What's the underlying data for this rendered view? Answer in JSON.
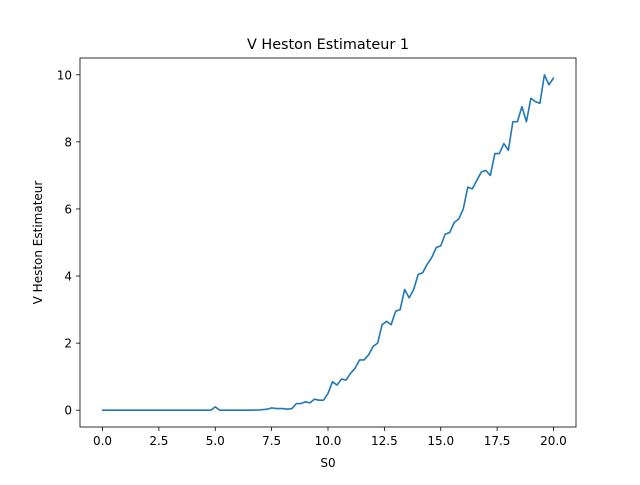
{
  "chart_data": {
    "type": "line",
    "title": "V Heston Estimateur 1",
    "xlabel": "S0",
    "ylabel": "V Heston Estimateur",
    "xlim": [
      -1.0,
      21.0
    ],
    "ylim": [
      -0.5,
      10.5
    ],
    "grid": false,
    "line_color": "#1f77b4",
    "x_ticks": [
      0.0,
      2.5,
      5.0,
      7.5,
      10.0,
      12.5,
      15.0,
      17.5,
      20.0
    ],
    "x_tick_labels": [
      "0.0",
      "2.5",
      "5.0",
      "7.5",
      "10.0",
      "12.5",
      "15.0",
      "17.5",
      "20.0"
    ],
    "y_ticks": [
      0,
      2,
      4,
      6,
      8,
      10
    ],
    "y_tick_labels": [
      "0",
      "2",
      "4",
      "6",
      "8",
      "10"
    ],
    "series": [
      {
        "x": [
          0.0,
          0.5,
          1.0,
          1.5,
          2.0,
          2.5,
          3.0,
          3.5,
          4.0,
          4.5,
          4.8,
          5.0,
          5.2,
          5.5,
          6.0,
          6.5,
          7.0,
          7.3,
          7.5,
          7.7,
          8.0,
          8.2,
          8.4,
          8.6,
          8.8,
          9.0,
          9.2,
          9.4,
          9.6,
          9.8,
          10.0,
          10.2,
          10.4,
          10.6,
          10.8,
          11.0,
          11.2,
          11.4,
          11.6,
          11.8,
          12.0,
          12.2,
          12.4,
          12.6,
          12.8,
          13.0,
          13.2,
          13.4,
          13.6,
          13.8,
          14.0,
          14.2,
          14.4,
          14.6,
          14.8,
          15.0,
          15.2,
          15.4,
          15.6,
          15.8,
          16.0,
          16.2,
          16.4,
          16.6,
          16.8,
          17.0,
          17.2,
          17.4,
          17.6,
          17.8,
          18.0,
          18.2,
          18.4,
          18.6,
          18.8,
          19.0,
          19.2,
          19.4,
          19.6,
          19.8,
          20.0
        ],
        "y": [
          0.0,
          0.0,
          0.0,
          0.0,
          0.0,
          0.0,
          0.0,
          0.0,
          0.0,
          0.0,
          0.0,
          0.1,
          0.0,
          0.0,
          0.0,
          0.0,
          0.01,
          0.03,
          0.07,
          0.05,
          0.05,
          0.03,
          0.05,
          0.2,
          0.2,
          0.25,
          0.22,
          0.33,
          0.3,
          0.3,
          0.5,
          0.85,
          0.75,
          0.93,
          0.9,
          1.1,
          1.25,
          1.5,
          1.5,
          1.65,
          1.9,
          2.0,
          2.55,
          2.65,
          2.55,
          2.95,
          3.0,
          3.6,
          3.35,
          3.6,
          4.05,
          4.1,
          4.35,
          4.55,
          4.85,
          4.9,
          5.25,
          5.3,
          5.6,
          5.7,
          6.0,
          6.65,
          6.6,
          6.85,
          7.1,
          7.15,
          7.0,
          7.65,
          7.65,
          7.95,
          7.75,
          8.6,
          8.6,
          9.05,
          8.6,
          9.3,
          9.2,
          9.15,
          10.0,
          9.7,
          9.9
        ]
      }
    ]
  }
}
